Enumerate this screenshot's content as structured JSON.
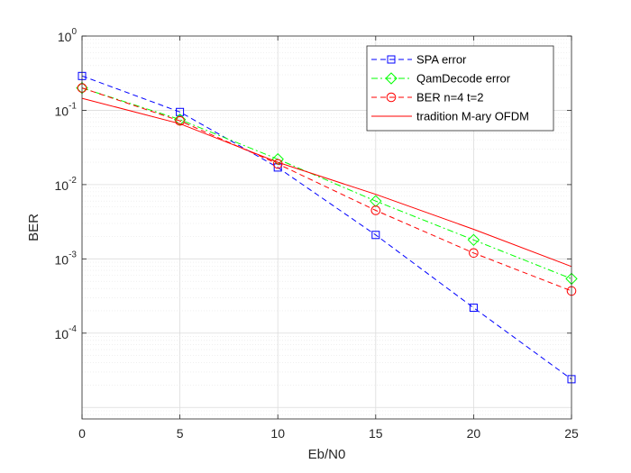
{
  "chart_data": {
    "type": "line",
    "xlabel": "Eb/N0",
    "ylabel": "BER",
    "xlim": [
      0,
      25
    ],
    "ylim": [
      7e-06,
      1
    ],
    "y_scale": "log",
    "grid": true,
    "minor_grid": true,
    "legend_position": "top-right",
    "x_ticks": [
      0,
      5,
      10,
      15,
      20,
      25
    ],
    "x_tick_labels": [
      "0",
      "5",
      "10",
      "15",
      "20",
      "25"
    ],
    "y_ticks": [
      {
        "value": 1,
        "base": "10",
        "exp": "0"
      },
      {
        "value": 0.1,
        "base": "10",
        "exp": "-1"
      },
      {
        "value": 0.01,
        "base": "10",
        "exp": "-2"
      },
      {
        "value": 0.001,
        "base": "10",
        "exp": "-3"
      },
      {
        "value": 0.0001,
        "base": "10",
        "exp": "-4"
      }
    ],
    "series": [
      {
        "name": "SPA error",
        "color": "#0000ff",
        "dash": "dashed",
        "marker": "square",
        "x": [
          0,
          5,
          10,
          15,
          20,
          25
        ],
        "y": [
          0.29,
          0.095,
          0.017,
          0.0021,
          0.00022,
          2.4e-05
        ]
      },
      {
        "name": "QamDecode error",
        "color": "#00ff00",
        "dash": "dashdot",
        "marker": "diamond",
        "x": [
          0,
          5,
          10,
          15,
          20,
          25
        ],
        "y": [
          0.2,
          0.075,
          0.022,
          0.006,
          0.0018,
          0.00054
        ]
      },
      {
        "name": "BER n=4 t=2",
        "color": "#ff0000",
        "dash": "dashed",
        "marker": "circle",
        "x": [
          0,
          5,
          10,
          15,
          20,
          25
        ],
        "y": [
          0.2,
          0.072,
          0.019,
          0.0045,
          0.0012,
          0.00037
        ]
      },
      {
        "name": "tradition M-ary OFDM",
        "color": "#ff0000",
        "dash": "solid",
        "marker": "none",
        "x": [
          0,
          5,
          10,
          15,
          20,
          25
        ],
        "y": [
          0.145,
          0.066,
          0.02,
          0.0074,
          0.0025,
          0.00079
        ]
      }
    ]
  }
}
